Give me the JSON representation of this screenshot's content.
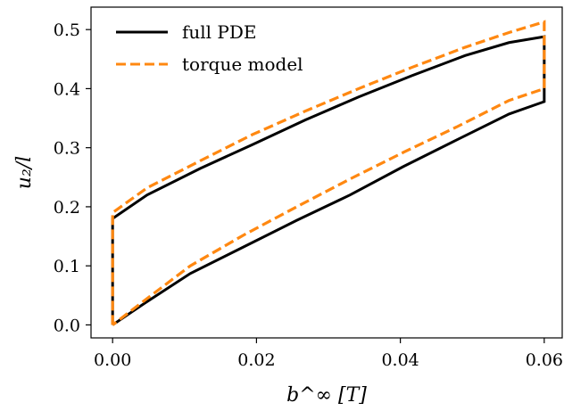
{
  "chart_data": {
    "type": "line",
    "title": "",
    "xlabel": "b^∞ [T]",
    "ylabel": "u₂/l",
    "xlim": [
      -0.003,
      0.0625
    ],
    "ylim": [
      -0.022,
      0.538
    ],
    "x_ticks": [
      0.0,
      0.02,
      0.04,
      0.06
    ],
    "x_tick_labels": [
      "0.00",
      "0.02",
      "0.04",
      "0.06"
    ],
    "y_ticks": [
      0.0,
      0.1,
      0.2,
      0.3,
      0.4,
      0.5
    ],
    "y_tick_labels": [
      "0.0",
      "0.1",
      "0.2",
      "0.3",
      "0.4",
      "0.5"
    ],
    "grid": false,
    "legend_position": "top-left",
    "series": [
      {
        "name": "full PDE",
        "color": "#000000",
        "style": "solid",
        "points": [
          [
            0.0,
            0.0
          ],
          [
            0.0,
            0.18
          ],
          [
            0.0048,
            0.22
          ],
          [
            0.0122,
            0.265
          ],
          [
            0.0194,
            0.305
          ],
          [
            0.0268,
            0.347
          ],
          [
            0.0342,
            0.386
          ],
          [
            0.0416,
            0.422
          ],
          [
            0.049,
            0.456
          ],
          [
            0.0551,
            0.478
          ],
          [
            0.06,
            0.488
          ],
          [
            0.06,
            0.378
          ],
          [
            0.0551,
            0.357
          ],
          [
            0.0478,
            0.313
          ],
          [
            0.0404,
            0.268
          ],
          [
            0.033,
            0.22
          ],
          [
            0.0256,
            0.177
          ],
          [
            0.0182,
            0.132
          ],
          [
            0.0108,
            0.087
          ],
          [
            0.0045,
            0.037
          ],
          [
            0.0,
            0.0
          ]
        ]
      },
      {
        "name": "torque model",
        "color": "#ff8811",
        "style": "dashed",
        "points": [
          [
            0.0,
            0.0
          ],
          [
            0.0,
            0.19
          ],
          [
            0.0048,
            0.232
          ],
          [
            0.0122,
            0.278
          ],
          [
            0.0194,
            0.322
          ],
          [
            0.0268,
            0.362
          ],
          [
            0.0342,
            0.4
          ],
          [
            0.0416,
            0.436
          ],
          [
            0.049,
            0.47
          ],
          [
            0.0551,
            0.495
          ],
          [
            0.06,
            0.513
          ],
          [
            0.06,
            0.4
          ],
          [
            0.0551,
            0.38
          ],
          [
            0.0478,
            0.335
          ],
          [
            0.0404,
            0.292
          ],
          [
            0.033,
            0.247
          ],
          [
            0.0256,
            0.2
          ],
          [
            0.0182,
            0.152
          ],
          [
            0.0108,
            0.1
          ],
          [
            0.0045,
            0.042
          ],
          [
            0.0,
            0.0
          ]
        ]
      }
    ]
  }
}
